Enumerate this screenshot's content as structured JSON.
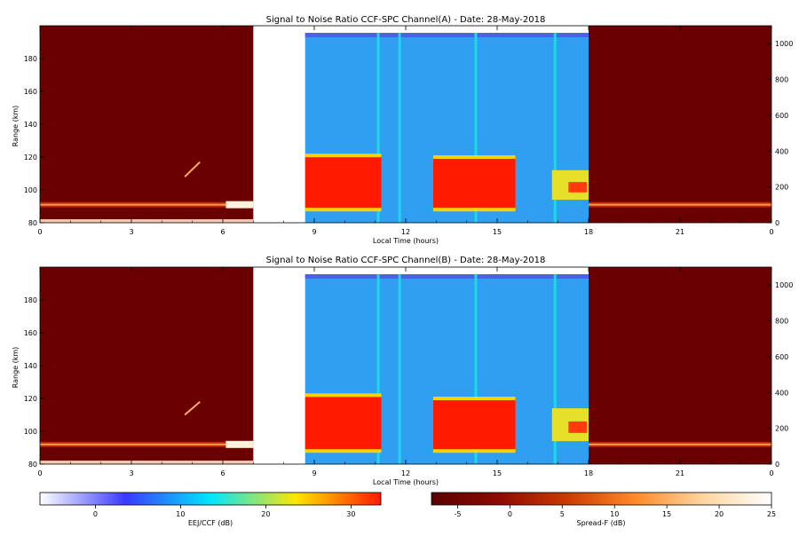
{
  "chart_data": [
    {
      "type": "heatmap",
      "title": "Signal to Noise Ratio CCF-SPC Channel(A) - Date: 28-May-2018",
      "xlabel": "Local Time (hours)",
      "ylabel": "Range (km)",
      "x_ticks": [
        "0",
        "3",
        "6",
        "9",
        "12",
        "15",
        "18",
        "21",
        "0"
      ],
      "y_ticks": [
        "80",
        "100",
        "120",
        "140",
        "160",
        "180"
      ],
      "y2_ticks": [
        "0",
        "200",
        "400",
        "600",
        "800",
        "1000"
      ],
      "ylim": [
        80,
        200
      ],
      "y2lim": [
        0,
        1100
      ],
      "data_gap_hours": [
        7.0,
        8.7
      ],
      "night_mode": "Spread-F",
      "day_mode": "EEJ/CCF",
      "day_window_hours": [
        8.7,
        18.0
      ],
      "echo_regions": [
        {
          "t_start": 8.7,
          "t_end": 11.2,
          "h_min": 88,
          "h_max": 121,
          "snr_db": 32
        },
        {
          "t_start": 12.9,
          "t_end": 15.6,
          "h_min": 88,
          "h_max": 120,
          "snr_db": 32
        },
        {
          "t_start": 16.8,
          "t_end": 18.0,
          "h_min": 94,
          "h_max": 112,
          "snr_db": 18
        }
      ],
      "interference_columns_hours": [
        11.1,
        11.8,
        14.3,
        16.9
      ],
      "night_bright_layer_km": 91,
      "night_feature": {
        "t": 5.0,
        "h_from": 108,
        "h_to": 117
      }
    },
    {
      "type": "heatmap",
      "title": "Signal to Noise Ratio CCF-SPC Channel(B) - Date: 28-May-2018",
      "xlabel": "Local Time (hours)",
      "ylabel": "Range (km)",
      "x_ticks": [
        "0",
        "3",
        "6",
        "9",
        "12",
        "15",
        "18",
        "21",
        "0"
      ],
      "y_ticks": [
        "80",
        "100",
        "120",
        "140",
        "160",
        "180"
      ],
      "y2_ticks": [
        "0",
        "200",
        "400",
        "600",
        "800",
        "1000"
      ],
      "ylim": [
        80,
        200
      ],
      "y2lim": [
        0,
        1100
      ],
      "data_gap_hours": [
        7.0,
        8.7
      ],
      "night_mode": "Spread-F",
      "day_mode": "EEJ/CCF",
      "day_window_hours": [
        8.7,
        18.0
      ],
      "echo_regions": [
        {
          "t_start": 8.7,
          "t_end": 11.2,
          "h_min": 88,
          "h_max": 122,
          "snr_db": 32
        },
        {
          "t_start": 12.9,
          "t_end": 15.6,
          "h_min": 88,
          "h_max": 120,
          "snr_db": 32
        },
        {
          "t_start": 16.8,
          "t_end": 18.0,
          "h_min": 94,
          "h_max": 114,
          "snr_db": 18
        }
      ],
      "interference_columns_hours": [
        11.1,
        11.8,
        14.3,
        16.9
      ],
      "night_bright_layer_km": 92,
      "night_feature": {
        "t": 5.0,
        "h_from": 110,
        "h_to": 118
      }
    }
  ],
  "colorbars": [
    {
      "label": "EEJ/CCF (dB)",
      "ticks": [
        "0",
        "10",
        "20",
        "30"
      ],
      "range": [
        -6.5,
        33.5
      ],
      "colors": [
        "#ffffff",
        "#3a3aff",
        "#00e6ff",
        "#ffe600",
        "#ff1a00"
      ]
    },
    {
      "label": "Spread-F (dB)",
      "ticks": [
        "-5",
        "0",
        "5",
        "10",
        "15",
        "20",
        "25"
      ],
      "range": [
        -7.5,
        25
      ],
      "colors": [
        "#5a0000",
        "#8e0a00",
        "#cc3a00",
        "#ff8a2a",
        "#ffd6a0",
        "#ffffff"
      ]
    }
  ]
}
